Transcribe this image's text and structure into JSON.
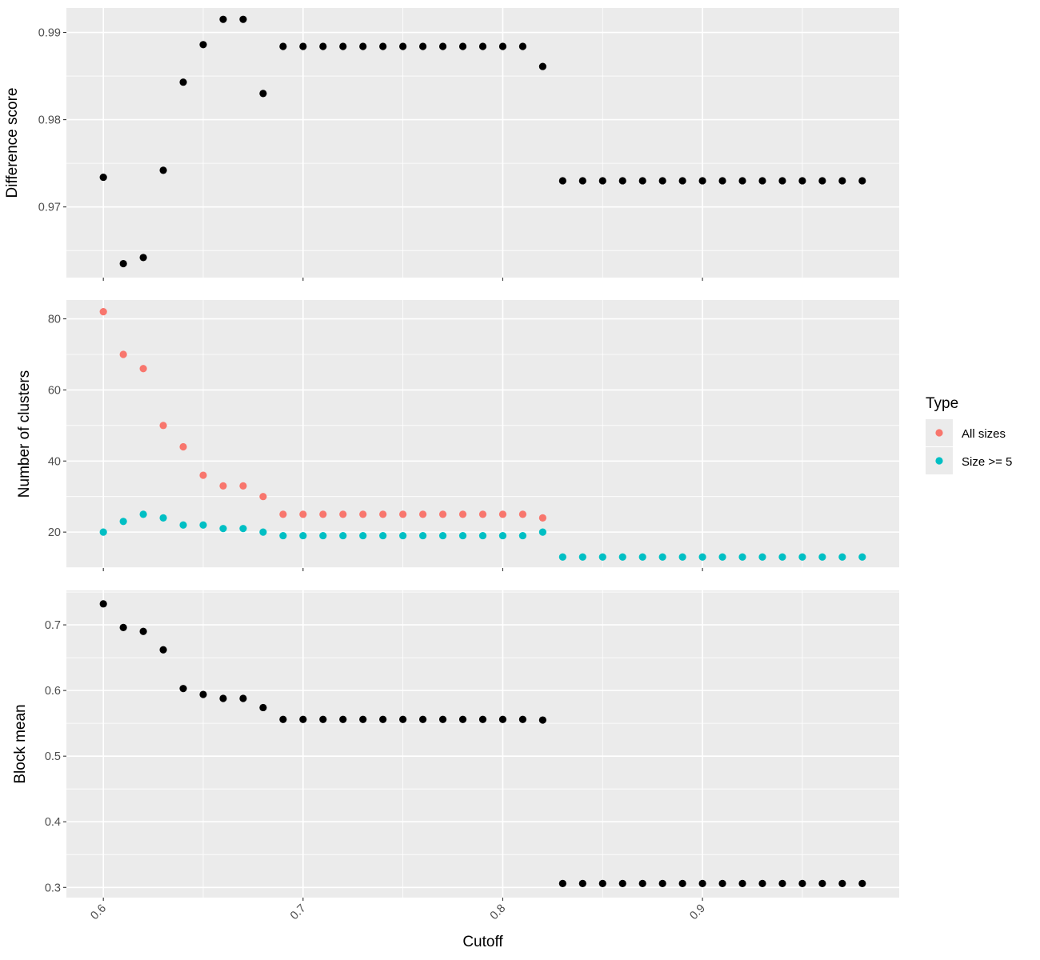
{
  "chart_data": {
    "type": "scatter",
    "x": [
      0.6,
      0.61,
      0.62,
      0.63,
      0.64,
      0.65,
      0.66,
      0.67,
      0.68,
      0.69,
      0.7,
      0.71,
      0.72,
      0.73,
      0.74,
      0.75,
      0.76,
      0.77,
      0.78,
      0.79,
      0.8,
      0.81,
      0.82,
      0.83,
      0.84,
      0.85,
      0.86,
      0.87,
      0.88,
      0.89,
      0.9,
      0.91,
      0.92,
      0.93,
      0.94,
      0.95,
      0.96,
      0.97,
      0.98
    ],
    "xlabel": "Cutoff",
    "xlim": [
      0.5815,
      0.9985
    ],
    "xticks": [
      {
        "value": 0.6,
        "label": "0.6"
      },
      {
        "value": 0.7,
        "label": "0.7"
      },
      {
        "value": 0.8,
        "label": "0.8"
      },
      {
        "value": 0.9,
        "label": "0.9"
      }
    ],
    "grid": true,
    "legend_position": "right",
    "panels": [
      {
        "ylabel": "Difference score",
        "ylim": [
          0.9619,
          0.9928
        ],
        "yticks": [
          {
            "value": 0.97,
            "label": "0.97"
          },
          {
            "value": 0.98,
            "label": "0.98"
          },
          {
            "value": 0.99,
            "label": "0.99"
          }
        ],
        "series": [
          {
            "color": "#000000",
            "values": [
              0.9734,
              0.9635,
              0.9642,
              0.9742,
              0.9843,
              0.9886,
              0.9915,
              0.9915,
              0.983,
              0.9884,
              0.9884,
              0.9884,
              0.9884,
              0.9884,
              0.9884,
              0.9884,
              0.9884,
              0.9884,
              0.9884,
              0.9884,
              0.9884,
              0.9884,
              0.9861,
              0.973,
              0.973,
              0.973,
              0.973,
              0.973,
              0.973,
              0.973,
              0.973,
              0.973,
              0.973,
              0.973,
              0.973,
              0.973,
              0.973,
              0.973,
              0.973
            ]
          }
        ]
      },
      {
        "ylabel": "Number of clusters",
        "ylim": [
          9.9,
          85.3
        ],
        "yticks": [
          {
            "value": 20,
            "label": "20"
          },
          {
            "value": 40,
            "label": "40"
          },
          {
            "value": 60,
            "label": "60"
          },
          {
            "value": 80,
            "label": "80"
          }
        ],
        "series": [
          {
            "name": "All sizes",
            "color": "#F8766D",
            "values": [
              82,
              70,
              66,
              50,
              44,
              36,
              33,
              33,
              30,
              25,
              25,
              25,
              25,
              25,
              25,
              25,
              25,
              25,
              25,
              25,
              25,
              25,
              24,
              null,
              null,
              null,
              null,
              null,
              null,
              null,
              null,
              null,
              null,
              null,
              null,
              null,
              null,
              null,
              null
            ]
          },
          {
            "name": "Size >= 5",
            "color": "#00BFC4",
            "values": [
              20,
              23,
              25,
              24,
              22,
              22,
              21,
              21,
              20,
              19,
              19,
              19,
              19,
              19,
              19,
              19,
              19,
              19,
              19,
              19,
              19,
              19,
              20,
              13,
              13,
              13,
              13,
              13,
              13,
              13,
              13,
              13,
              13,
              13,
              13,
              13,
              13,
              13,
              13
            ]
          }
        ]
      },
      {
        "ylabel": "Block mean",
        "ylim": [
          0.2845,
          0.7525
        ],
        "yticks": [
          {
            "value": 0.3,
            "label": "0.3"
          },
          {
            "value": 0.4,
            "label": "0.4"
          },
          {
            "value": 0.5,
            "label": "0.5"
          },
          {
            "value": 0.6,
            "label": "0.6"
          },
          {
            "value": 0.7,
            "label": "0.7"
          }
        ],
        "series": [
          {
            "color": "#000000",
            "values": [
              0.732,
              0.696,
              0.69,
              0.662,
              0.603,
              0.594,
              0.588,
              0.588,
              0.574,
              0.556,
              0.556,
              0.556,
              0.556,
              0.556,
              0.556,
              0.556,
              0.556,
              0.556,
              0.556,
              0.556,
              0.556,
              0.556,
              0.555,
              0.306,
              0.306,
              0.306,
              0.306,
              0.306,
              0.306,
              0.306,
              0.306,
              0.306,
              0.306,
              0.306,
              0.306,
              0.306,
              0.306,
              0.306,
              0.306
            ]
          }
        ]
      }
    ],
    "legend": {
      "title": "Type",
      "entries": [
        {
          "label": "All sizes",
          "color": "#F8766D"
        },
        {
          "label": "Size >= 5",
          "color": "#00BFC4"
        }
      ]
    }
  }
}
